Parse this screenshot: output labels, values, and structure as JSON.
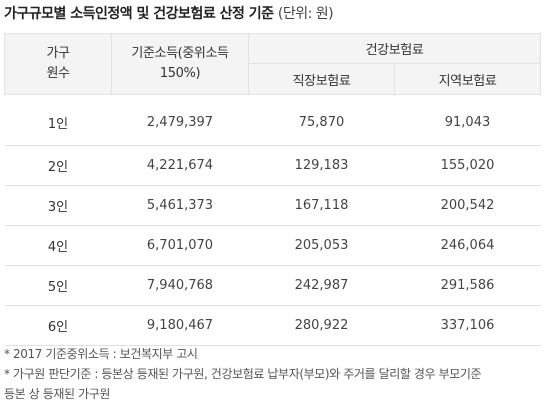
{
  "title": {
    "main": "가구규모별 소득인정액 및 건강보험료 산정 기준",
    "unit": "(단위: 원)"
  },
  "table": {
    "headers": {
      "household_line1": "가구",
      "household_line2": "원수",
      "income_line1": "기준소득(중위소득",
      "income_line2": "150%)",
      "health_group": "건강보험료",
      "employee": "직장보험료",
      "regional": "지역보험료"
    },
    "rows": [
      {
        "size": "1인",
        "income": "2,479,397",
        "employee": "75,870",
        "regional": "91,043"
      },
      {
        "size": "2인",
        "income": "4,221,674",
        "employee": "129,183",
        "regional": "155,020"
      },
      {
        "size": "3인",
        "income": "5,461,373",
        "employee": "167,118",
        "regional": "200,542"
      },
      {
        "size": "4인",
        "income": "6,701,070",
        "employee": "205,053",
        "regional": "246,064"
      },
      {
        "size": "5인",
        "income": "7,940,768",
        "employee": "242,987",
        "regional": "291,586"
      },
      {
        "size": "6인",
        "income": "9,180,467",
        "employee": "280,922",
        "regional": "337,106"
      }
    ]
  },
  "notes": {
    "line1": "* 2017 기준중위소득 : 보건복지부 고시",
    "line2": "* 가구원 판단기준 : 등본상 등재된 가구원, 건강보험료 납부자(부모)와 주거를 달리할 경우 부모기준",
    "line3": "등본 상 등재된 가구원"
  }
}
